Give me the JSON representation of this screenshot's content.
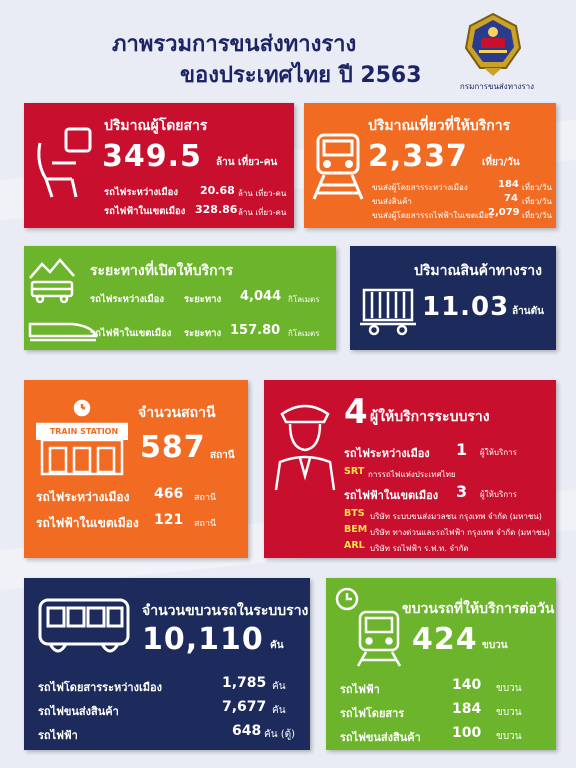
{
  "header": {
    "title_line1": "ภาพรวมการขนส่งทางราง",
    "title_line2": "ของประเทศไทย ปี 2563",
    "logo_caption": "กรมการขนส่งทางราง"
  },
  "colors": {
    "red": "#c8102e",
    "orange": "#f26b22",
    "green": "#6cb42c",
    "navy": "#1c2a5c",
    "yellow": "#ffe14d"
  },
  "passengers": {
    "heading": "ปริมาณผู้โดยสาร",
    "value": "349.5",
    "unit": "ล้าน เที่ยว-คน",
    "rows": [
      {
        "label": "รถไฟระหว่างเมือง",
        "value": "20.68",
        "unit": "ล้าน เที่ยว-คน"
      },
      {
        "label": "รถไฟฟ้าในเขตเมือง",
        "value": "328.86",
        "unit": "ล้าน เที่ยว-คน"
      }
    ]
  },
  "trips": {
    "heading": "ปริมาณเที่ยวที่ให้บริการ",
    "value": "2,337",
    "unit": "เที่ยว/วัน",
    "rows": [
      {
        "label": "ขนส่งผู้โดยสารระหว่างเมือง",
        "value": "184",
        "unit": "เที่ยว/วัน"
      },
      {
        "label": "ขนส่งสินค้า",
        "value": "74",
        "unit": "เที่ยว/วัน"
      },
      {
        "label": "ขนส่งผู้โดยสารรถไฟฟ้าในเขตเมือง",
        "value": "2,079",
        "unit": "เที่ยว/วัน"
      }
    ]
  },
  "distance": {
    "heading": "ระยะทางที่เปิดให้บริการ",
    "rows": [
      {
        "label": "รถไฟระหว่างเมือง",
        "sub": "ระยะทาง",
        "value": "4,044",
        "unit": "กิโลเมตร"
      },
      {
        "label": "รถไฟฟ้าในเขตเมือง",
        "sub": "ระยะทาง",
        "value": "157.80",
        "unit": "กิโลเมตร"
      }
    ]
  },
  "freight": {
    "heading": "ปริมาณสินค้าทางราง",
    "value": "11.03",
    "unit": "ล้านตัน"
  },
  "stations": {
    "heading": "จำนวนสถานี",
    "sign": "TRAIN STATION",
    "value": "587",
    "unit": "สถานี",
    "rows": [
      {
        "label": "รถไฟระหว่างเมือง",
        "value": "466",
        "unit": "สถานี"
      },
      {
        "label": "รถไฟฟ้าในเขตเมือง",
        "value": "121",
        "unit": "สถานี"
      }
    ]
  },
  "operators": {
    "count": "4",
    "heading": "ผู้ให้บริการระบบราง",
    "intercity": {
      "label": "รถไฟระหว่างเมือง",
      "value": "1",
      "unit": "ผู้ให้บริการ"
    },
    "srt": {
      "code": "SRT",
      "name": "การรถไฟแห่งประเทศไทย"
    },
    "urban": {
      "label": "รถไฟฟ้าในเขตเมือง",
      "value": "3",
      "unit": "ผู้ให้บริการ"
    },
    "list": [
      {
        "code": "BTS",
        "name": "บริษัท ระบบขนส่งมวลชน กรุงเทพ จำกัด (มหาชน)"
      },
      {
        "code": "BEM",
        "name": "บริษัท ทางด่วนและรถไฟฟ้า กรุงเทพ จำกัด (มหาชน)"
      },
      {
        "code": "ARL",
        "name": "บริษัท รถไฟฟ้า ร.ฟ.ท. จำกัด"
      }
    ]
  },
  "fleet": {
    "heading": "จำนวนขบวนรถในระบบราง",
    "value": "10,110",
    "unit": "คัน",
    "rows": [
      {
        "label": "รถไฟโดยสารระหว่างเมือง",
        "value": "1,785",
        "unit": "คัน"
      },
      {
        "label": "รถไฟขนส่งสินค้า",
        "value": "7,677",
        "unit": "คัน"
      },
      {
        "label": "รถไฟฟ้า",
        "value": "648",
        "unit": "คัน (ตู้)"
      }
    ]
  },
  "daily": {
    "heading": "ขบวนรถที่ให้บริการต่อวัน",
    "value": "424",
    "unit": "ขบวน",
    "rows": [
      {
        "label": "รถไฟฟ้า",
        "value": "140",
        "unit": "ขบวน"
      },
      {
        "label": "รถไฟโดยสาร",
        "value": "184",
        "unit": "ขบวน"
      },
      {
        "label": "รถไฟขนส่งสินค้า",
        "value": "100",
        "unit": "ขบวน"
      }
    ]
  }
}
